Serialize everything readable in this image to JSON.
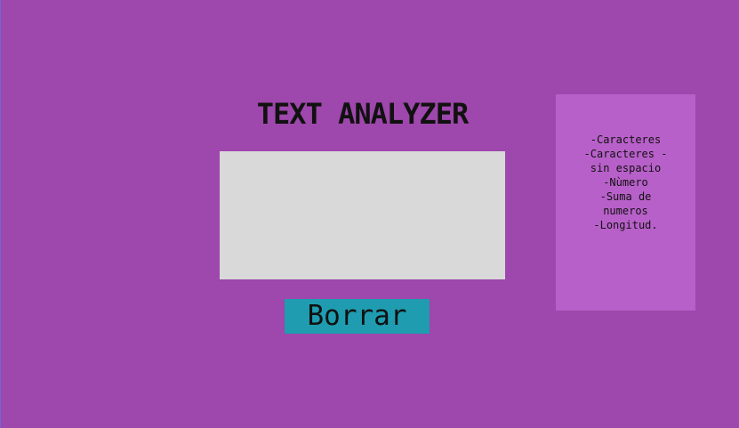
{
  "app": {
    "title": "TEXT ANALYZER"
  },
  "input": {
    "value": "",
    "placeholder": ""
  },
  "actions": {
    "clear_label": "Borrar"
  },
  "stats": {
    "items": [
      "-Caracteres",
      "-Caracteres - sin espacio",
      "-Nùmero",
      "-Suma de numeros",
      "-Longitud."
    ]
  },
  "colors": {
    "background": "#9e47ac",
    "panel": "#b860c9",
    "textarea": "#d9d9d9",
    "button": "#1f9cb0",
    "text": "#111111"
  }
}
